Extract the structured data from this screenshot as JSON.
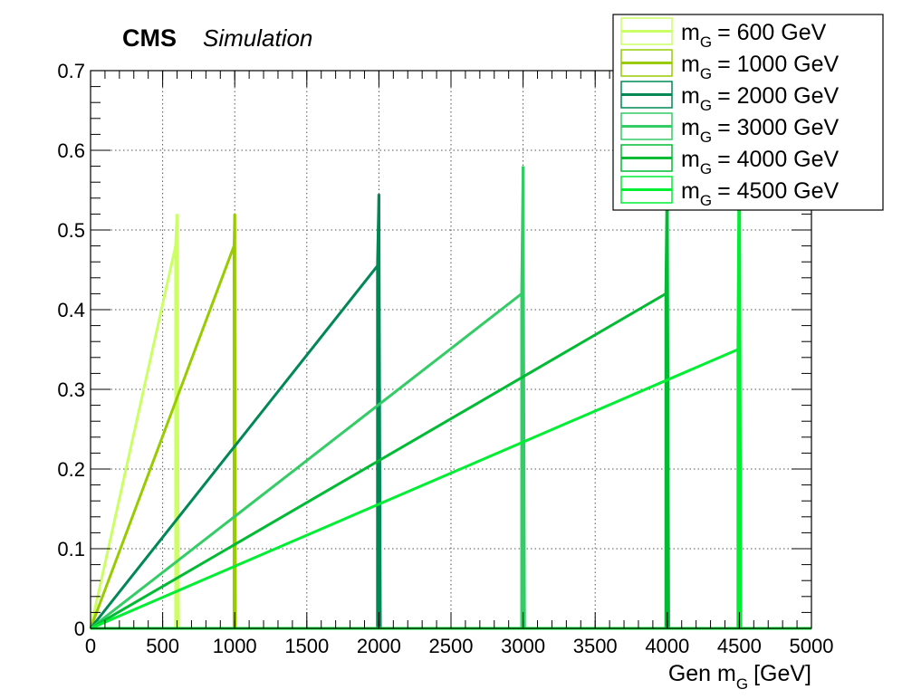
{
  "chart_data": {
    "type": "line",
    "header": {
      "experiment": "CMS",
      "tag": "Simulation"
    },
    "xlabel": "Gen m",
    "xlabel_sub": "G",
    "xlabel_unit": "[GeV]",
    "ylabel": "",
    "xlim": [
      0,
      5000
    ],
    "ylim": [
      0,
      0.7
    ],
    "x_ticks": [
      "0",
      "500",
      "1000",
      "1500",
      "2000",
      "2500",
      "3000",
      "3500",
      "4000",
      "4500",
      "5000"
    ],
    "y_ticks": [
      "0",
      "0.1",
      "0.2",
      "0.3",
      "0.4",
      "0.5",
      "0.6",
      "0.7"
    ],
    "grid": true,
    "legend_position": "top-right",
    "legend_prefix": "m",
    "legend_sub": "G",
    "series": [
      {
        "name": "= 600 GeV",
        "color": "#ccff66",
        "x": [
          590,
          600,
          610
        ],
        "y": [
          0.48,
          0.52,
          0.0
        ]
      },
      {
        "name": "= 1000 GeV",
        "color": "#99cc00",
        "x": [
          995,
          1000,
          1005
        ],
        "y": [
          0.48,
          0.52,
          0.0
        ]
      },
      {
        "name": "= 2000 GeV",
        "color": "#008855",
        "x": [
          1990,
          2000,
          2010
        ],
        "y": [
          0.455,
          0.545,
          0.0
        ]
      },
      {
        "name": "= 3000 GeV",
        "color": "#33cc66",
        "x": [
          2990,
          3000,
          3010
        ],
        "y": [
          0.42,
          0.58,
          0.0
        ]
      },
      {
        "name": "= 4000 GeV",
        "color": "#00bb33",
        "x": [
          3990,
          4000,
          4010
        ],
        "y": [
          0.42,
          0.58,
          0.0
        ]
      },
      {
        "name": "= 4500 GeV",
        "color": "#00ee33",
        "x": [
          4490,
          4500,
          4510
        ],
        "y": [
          0.35,
          0.65,
          0.0
        ]
      }
    ]
  }
}
